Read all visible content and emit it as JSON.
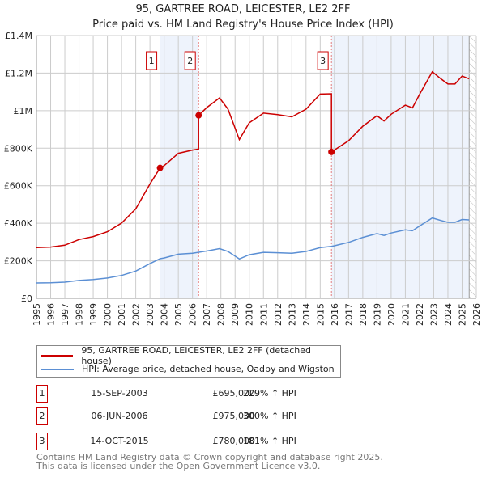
{
  "chart_data": {
    "type": "line",
    "title": "95, GARTREE ROAD, LEICESTER, LE2 2FF",
    "subtitle": "Price paid vs. HM Land Registry's House Price Index (HPI)",
    "xlim": [
      1995,
      2026
    ],
    "ylim": [
      0,
      1400000
    ],
    "xticks": [
      "1995",
      "1996",
      "1997",
      "1998",
      "1999",
      "2000",
      "2001",
      "2002",
      "2003",
      "2004",
      "2005",
      "2006",
      "2007",
      "2008",
      "2009",
      "2010",
      "2011",
      "2012",
      "2013",
      "2014",
      "2015",
      "2016",
      "2017",
      "2018",
      "2019",
      "2020",
      "2021",
      "2022",
      "2023",
      "2024",
      "2025",
      "2026"
    ],
    "yticks": [
      {
        "v": 0,
        "label": "£0"
      },
      {
        "v": 200000,
        "label": "£200K"
      },
      {
        "v": 400000,
        "label": "£400K"
      },
      {
        "v": 600000,
        "label": "£600K"
      },
      {
        "v": 800000,
        "label": "£800K"
      },
      {
        "v": 1000000,
        "label": "£1M"
      },
      {
        "v": 1200000,
        "label": "£1.2M"
      },
      {
        "v": 1400000,
        "label": "£1.4M"
      }
    ],
    "grid": true,
    "series": [
      {
        "name": "95, GARTREE ROAD, LEICESTER, LE2 2FF (detached house)",
        "color": "#cc0000",
        "x": [
          1995,
          1996,
          1997,
          1998,
          1999,
          2000,
          2001,
          2002,
          2003,
          2003.71,
          2004,
          2005,
          2006,
          2006.43,
          2006.43,
          2007,
          2007.9,
          2008.5,
          2009.3,
          2010,
          2011,
          2012,
          2013,
          2014,
          2015,
          2015.79,
          2015.79,
          2016,
          2017,
          2018,
          2019,
          2019.5,
          2020,
          2021,
          2021.5,
          2022,
          2022.9,
          2023.5,
          2024,
          2024.5,
          2025,
          2025.5
        ],
        "y": [
          270,
          273,
          283,
          313,
          329,
          355,
          401,
          477,
          609,
          695,
          707,
          773,
          790,
          795,
          975,
          1016,
          1068,
          1008,
          846,
          935,
          987,
          979,
          967,
          1008,
          1088,
          1090,
          780,
          790,
          840,
          917,
          973,
          945,
          981,
          1029,
          1015,
          1086,
          1207,
          1170,
          1142,
          1142,
          1184,
          1170
        ]
      },
      {
        "name": "HPI: Average price, detached house, Oadby and Wigston",
        "color": "#5b8fd4",
        "x": [
          1995,
          1996,
          1997,
          1998,
          1999,
          2000,
          2001,
          2002,
          2003,
          2003.71,
          2004,
          2005,
          2006,
          2007,
          2007.9,
          2008.5,
          2009.3,
          2010,
          2011,
          2012,
          2013,
          2014,
          2015,
          2015.79,
          2016,
          2017,
          2018,
          2019,
          2019.5,
          2020,
          2021,
          2021.5,
          2022,
          2022.9,
          2023.5,
          2024,
          2024.5,
          2025,
          2025.5
        ],
        "y": [
          82,
          83,
          86,
          95,
          100,
          108,
          122,
          145,
          185,
          211,
          215,
          235,
          240,
          252,
          265,
          250,
          210,
          232,
          245,
          243,
          240,
          250,
          270,
          277,
          280,
          298,
          325,
          345,
          335,
          348,
          365,
          360,
          385,
          428,
          415,
          405,
          405,
          420,
          418
        ]
      }
    ],
    "series_units": "thousands GBP",
    "sales": [
      {
        "n": "1",
        "x": 2003.71,
        "value": 695000,
        "date": "15-SEP-2003",
        "price": "£695,000",
        "hpi": "229% ↑ HPI"
      },
      {
        "n": "2",
        "x": 2006.43,
        "value": 975000,
        "date": "06-JUN-2006",
        "price": "£975,000",
        "hpi": "300% ↑ HPI"
      },
      {
        "n": "3",
        "x": 2015.79,
        "value": 780000,
        "date": "14-OCT-2015",
        "price": "£780,000",
        "hpi": "181% ↑ HPI"
      }
    ],
    "shaded": [
      [
        2003.71,
        2006.43
      ],
      [
        2015.79,
        2025.5
      ]
    ],
    "hatched_from": 2025.5
  },
  "footer": [
    "Contains HM Land Registry data © Crown copyright and database right 2025.",
    "This data is licensed under the Open Government Licence v3.0."
  ]
}
